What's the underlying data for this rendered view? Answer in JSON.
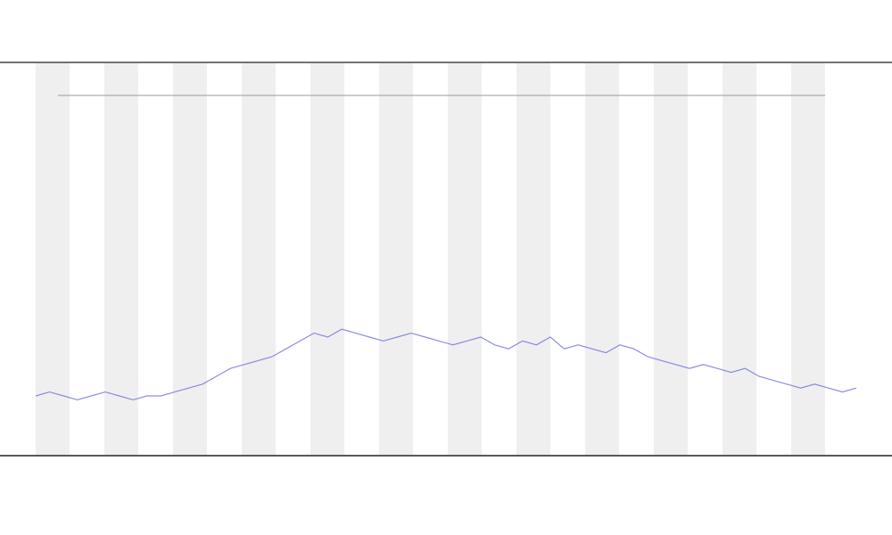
{
  "chart_data": {
    "type": "line",
    "series": [
      {
        "color": "#6f6fe0",
        "values": [
          15,
          16,
          15,
          14,
          15,
          16,
          15,
          14,
          15,
          15,
          16,
          17,
          18,
          20,
          22,
          23,
          24,
          25,
          27,
          29,
          31,
          30,
          32,
          31,
          30,
          29,
          30,
          31,
          30,
          29,
          28,
          29,
          30,
          28,
          27,
          29,
          28,
          30,
          27,
          28,
          27,
          26,
          28,
          27,
          25,
          24,
          23,
          22,
          23,
          22,
          21,
          22,
          20,
          19,
          18,
          17,
          18,
          17,
          16,
          17
        ]
      }
    ],
    "ylim": [
      0,
      100
    ]
  }
}
